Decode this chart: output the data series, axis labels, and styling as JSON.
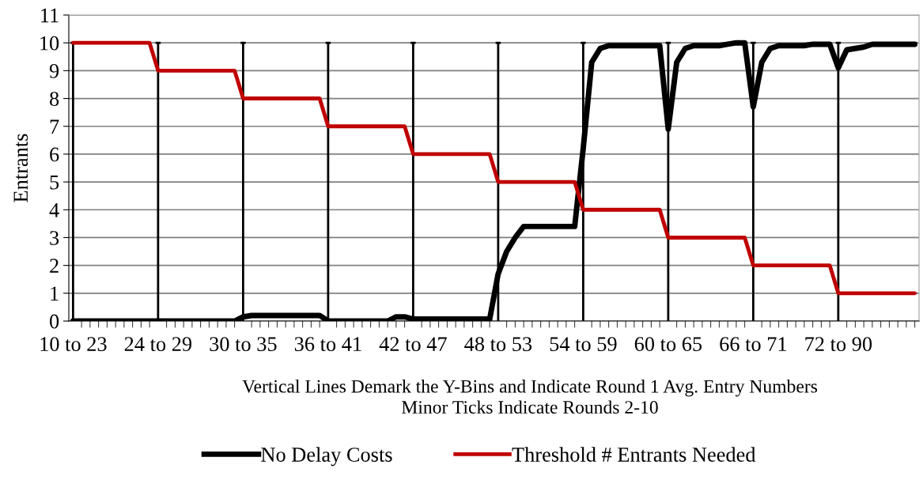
{
  "chart_data": {
    "type": "line",
    "ylabel": "Entrants",
    "categories": [
      "10 to 23",
      null,
      null,
      null,
      null,
      null,
      null,
      null,
      null,
      null,
      "24 to 29",
      null,
      null,
      null,
      null,
      null,
      null,
      null,
      null,
      null,
      "30 to 35",
      null,
      null,
      null,
      null,
      null,
      null,
      null,
      null,
      null,
      "36 to 41",
      null,
      null,
      null,
      null,
      null,
      null,
      null,
      null,
      null,
      "42 to 47",
      null,
      null,
      null,
      null,
      null,
      null,
      null,
      null,
      null,
      "48 to 53",
      null,
      null,
      null,
      null,
      null,
      null,
      null,
      null,
      null,
      "54 to 59",
      null,
      null,
      null,
      null,
      null,
      null,
      null,
      null,
      null,
      "60 to 65",
      null,
      null,
      null,
      null,
      null,
      null,
      null,
      null,
      null,
      "66 to 71",
      null,
      null,
      null,
      null,
      null,
      null,
      null,
      null,
      null,
      "72 to 90",
      null,
      null,
      null,
      null,
      null,
      null,
      null,
      null,
      null
    ],
    "series": [
      {
        "name": "No Delay Costs",
        "color": "#000000",
        "values": [
          0,
          0,
          0,
          0,
          0,
          0,
          0,
          0,
          0,
          0,
          0,
          0,
          0,
          0,
          0,
          0,
          0,
          0,
          0,
          0,
          0.15,
          0.2,
          0.2,
          0.2,
          0.2,
          0.2,
          0.2,
          0.2,
          0.2,
          0.2,
          0,
          0,
          0,
          0,
          0,
          0,
          0,
          0,
          0.15,
          0.15,
          0.07,
          0.07,
          0.07,
          0.07,
          0.07,
          0.07,
          0.07,
          0.07,
          0.07,
          0.07,
          1.7,
          2.5,
          3.0,
          3.4,
          3.4,
          3.4,
          3.4,
          3.4,
          3.4,
          3.4,
          6.2,
          9.3,
          9.8,
          9.9,
          9.9,
          9.9,
          9.9,
          9.9,
          9.9,
          9.9,
          6.9,
          9.3,
          9.8,
          9.9,
          9.9,
          9.9,
          9.9,
          9.95,
          10,
          10,
          7.7,
          9.3,
          9.8,
          9.9,
          9.9,
          9.9,
          9.9,
          9.95,
          9.95,
          9.95,
          9.1,
          9.75,
          9.8,
          9.85,
          9.95,
          9.95,
          9.95,
          9.95,
          9.95,
          9.95
        ]
      },
      {
        "name": "Threshold # Entrants Needed",
        "color": "#c00000",
        "values": [
          10,
          10,
          10,
          10,
          10,
          10,
          10,
          10,
          10,
          10,
          9,
          9,
          9,
          9,
          9,
          9,
          9,
          9,
          9,
          9,
          8,
          8,
          8,
          8,
          8,
          8,
          8,
          8,
          8,
          8,
          7,
          7,
          7,
          7,
          7,
          7,
          7,
          7,
          7,
          7,
          6,
          6,
          6,
          6,
          6,
          6,
          6,
          6,
          6,
          6,
          5,
          5,
          5,
          5,
          5,
          5,
          5,
          5,
          5,
          5,
          4,
          4,
          4,
          4,
          4,
          4,
          4,
          4,
          4,
          4,
          3,
          3,
          3,
          3,
          3,
          3,
          3,
          3,
          3,
          3,
          2,
          2,
          2,
          2,
          2,
          2,
          2,
          2,
          2,
          2,
          1,
          1,
          1,
          1,
          1,
          1,
          1,
          1,
          1,
          1
        ]
      }
    ],
    "ylim": [
      0,
      11
    ],
    "yticks": [
      0,
      1,
      2,
      3,
      4,
      5,
      6,
      7,
      8,
      9,
      10,
      11
    ],
    "grid": "y",
    "legend": "bottom",
    "marker": "none",
    "line_style": "solid",
    "ref_lines": [
      {
        "axis": "x",
        "value": "10 to 23",
        "color": "#000000"
      },
      {
        "axis": "x",
        "value": "24 to 29",
        "color": "#000000"
      },
      {
        "axis": "x",
        "value": "30 to 35",
        "color": "#000000"
      },
      {
        "axis": "x",
        "value": "36 to 41",
        "color": "#000000"
      },
      {
        "axis": "x",
        "value": "42 to 47",
        "color": "#000000"
      },
      {
        "axis": "x",
        "value": "48 to 53",
        "color": "#000000"
      },
      {
        "axis": "x",
        "value": "54 to 59",
        "color": "#000000"
      },
      {
        "axis": "x",
        "value": "60 to 65",
        "color": "#000000"
      },
      {
        "axis": "x",
        "value": "66 to 71",
        "color": "#000000"
      },
      {
        "axis": "x",
        "value": "72 to 90",
        "color": "#000000"
      }
    ],
    "annotations": [
      "Vertical Lines Demark the Y-Bins and Indicate Round 1 Avg. Entry Numbers\nMinor Ticks Indicate Rounds 2-10"
    ]
  }
}
